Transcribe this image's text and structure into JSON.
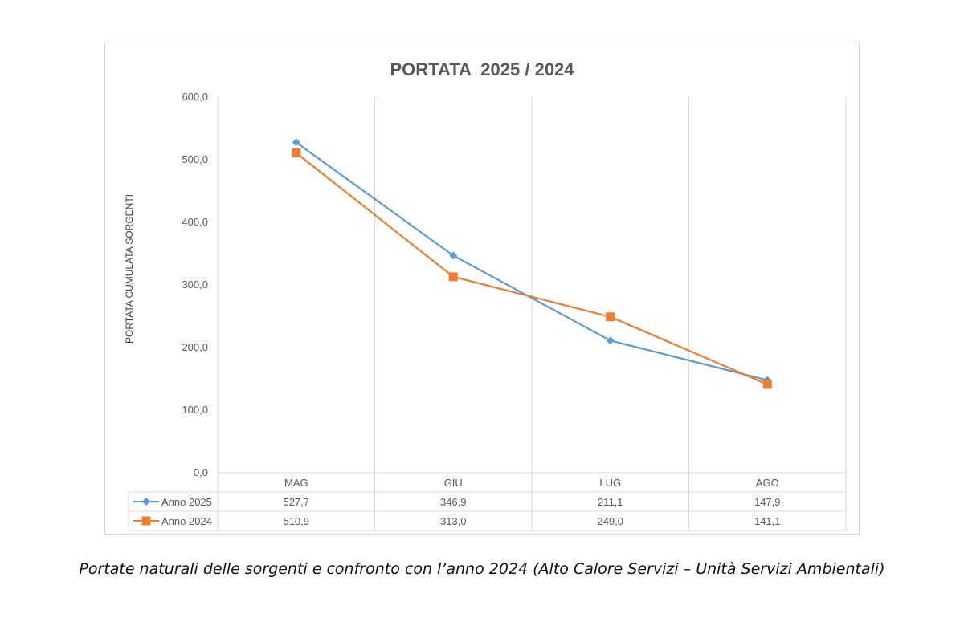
{
  "chart_data": {
    "type": "line",
    "title": "PORTATA  2025 / 2024",
    "ylabel": "PORTATA CUMULATA SORGENTI",
    "xlabel": "",
    "categories": [
      "MAG",
      "GIU",
      "LUG",
      "AGO"
    ],
    "ylim": [
      0,
      600
    ],
    "yticks": [
      0,
      100,
      200,
      300,
      400,
      500,
      600
    ],
    "ytick_labels": [
      "0,0",
      "100,0",
      "200,0",
      "300,0",
      "400,0",
      "500,0",
      "600,0"
    ],
    "grid": "vertical",
    "legend": "data-table",
    "series": [
      {
        "name": "Anno 2025",
        "values": [
          527.7,
          346.9,
          211.1,
          147.9
        ],
        "value_labels": [
          "527,7",
          "346,9",
          "211,1",
          "147,9"
        ],
        "color": "#5b9bd5",
        "marker": "diamond"
      },
      {
        "name": "Anno 2024",
        "values": [
          510.9,
          313.0,
          249.0,
          141.1
        ],
        "value_labels": [
          "510,9",
          "313,0",
          "249,0",
          "141,1"
        ],
        "color": "#ed7d31",
        "marker": "square"
      }
    ]
  },
  "caption": "Portate naturali delle sorgenti e confronto con l’anno 2024 (Alto Calore Servizi – Unità Servizi Ambientali)"
}
